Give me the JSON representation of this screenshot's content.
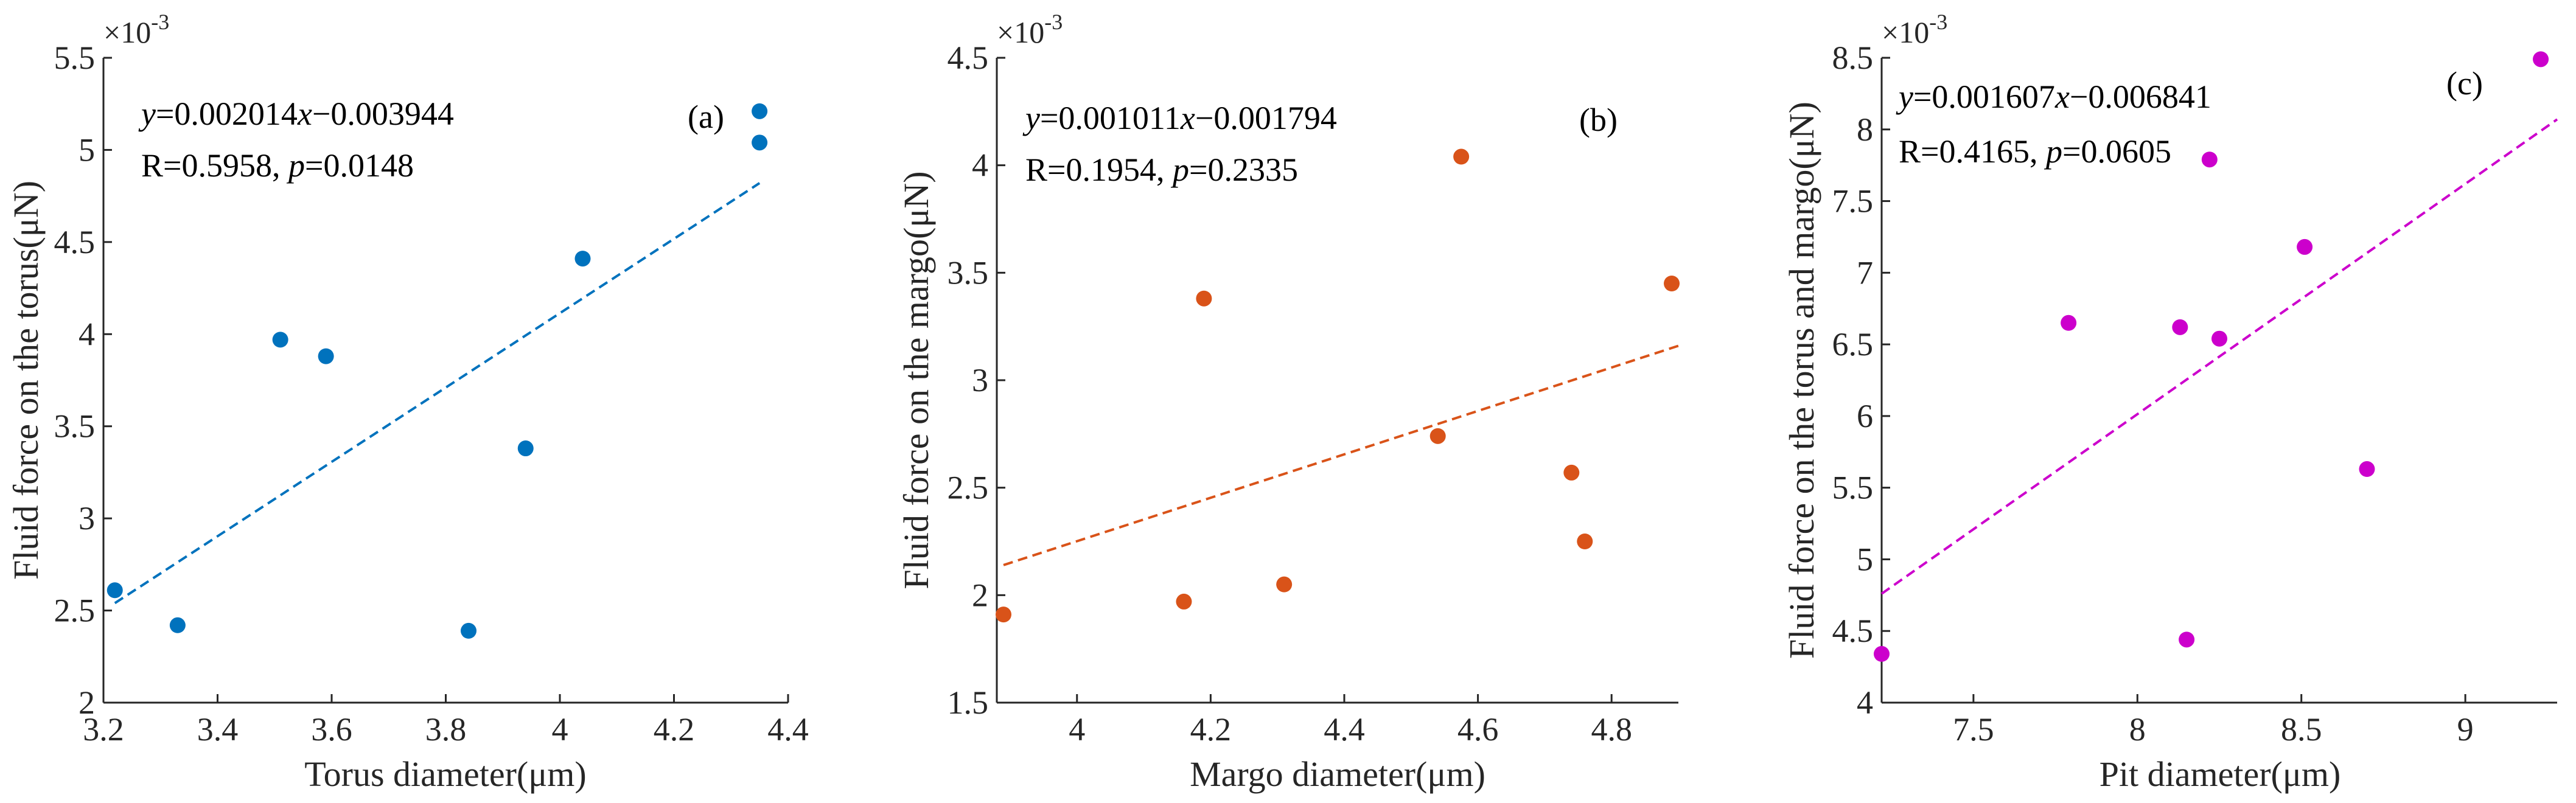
{
  "chart_data": [
    {
      "type": "scatter",
      "panel_label": "(a)",
      "xlabel": "Torus diameter(μm)",
      "ylabel": "Fluid force on the torus(μN)",
      "xlim": [
        3.2,
        4.4
      ],
      "ylim": [
        2.0,
        5.5
      ],
      "xticks": [
        3.2,
        3.4,
        3.6,
        3.8,
        4.0,
        4.2,
        4.4
      ],
      "xtick_labels": [
        "3.2",
        "3.4",
        "3.6",
        "3.8",
        "4",
        "4.2",
        "4.4"
      ],
      "yticks": [
        2.0,
        2.5,
        3.0,
        3.5,
        4.0,
        4.5,
        5.0,
        5.5
      ],
      "ytick_labels": [
        "2",
        "2.5",
        "3",
        "3.5",
        "4",
        "4.5",
        "5",
        "5.5"
      ],
      "y_multiplier": {
        "base": "×10",
        "exponent": "-3"
      },
      "color": "#0072BD",
      "x": [
        3.22,
        3.33,
        3.51,
        3.59,
        3.84,
        3.94,
        4.04,
        4.35,
        4.35
      ],
      "y": [
        2.61,
        2.42,
        3.97,
        3.88,
        2.39,
        3.38,
        4.41,
        5.21,
        5.04
      ],
      "fit": {
        "x": [
          3.22,
          4.35
        ],
        "y": [
          2.54,
          4.82
        ]
      },
      "annotation": {
        "eq_y": "y",
        "eq_rest": "=0.002014",
        "eq_x": "x",
        "eq_tail": "−0.003944",
        "r_text": "R=0.5958, ",
        "p_var": "p",
        "p_val": "=0.0148"
      }
    },
    {
      "type": "scatter",
      "panel_label": "(b)",
      "xlabel": "Margo diameter(μm)",
      "ylabel": "Fluid force on the margo(μN)",
      "xlim": [
        3.88,
        4.9
      ],
      "ylim": [
        1.5,
        4.5
      ],
      "xticks": [
        4.0,
        4.2,
        4.4,
        4.6,
        4.8
      ],
      "xtick_labels": [
        "4",
        "4.2",
        "4.4",
        "4.6",
        "4.8"
      ],
      "yticks": [
        1.5,
        2.0,
        2.5,
        3.0,
        3.5,
        4.0,
        4.5
      ],
      "ytick_labels": [
        "1.5",
        "2",
        "2.5",
        "3",
        "3.5",
        "4",
        "4.5"
      ],
      "y_multiplier": {
        "base": "×10",
        "exponent": "-3"
      },
      "color": "#D95319",
      "x": [
        3.89,
        4.16,
        4.19,
        4.31,
        4.54,
        4.575,
        4.74,
        4.76,
        4.89
      ],
      "y": [
        1.91,
        1.97,
        3.38,
        2.05,
        2.74,
        4.04,
        2.57,
        2.25,
        3.45
      ],
      "fit": {
        "x": [
          3.89,
          4.9
        ],
        "y": [
          2.14,
          3.16
        ]
      },
      "annotation": {
        "eq_y": "y",
        "eq_rest": "=0.001011",
        "eq_x": "x",
        "eq_tail": "−0.001794",
        "r_text": "R=0.1954, ",
        "p_var": "p",
        "p_val": "=0.2335"
      }
    },
    {
      "type": "scatter",
      "panel_label": "(c)",
      "xlabel": "Pit diameter(μm)",
      "ylabel": "Fluid force on the torus and margo(μN)",
      "xlim": [
        7.22,
        9.28
      ],
      "ylim": [
        4.0,
        8.5
      ],
      "xticks": [
        7.5,
        8.0,
        8.5,
        9.0
      ],
      "xtick_labels": [
        "7.5",
        "8",
        "8.5",
        "9"
      ],
      "yticks": [
        4.0,
        4.5,
        5.0,
        5.5,
        6.0,
        6.5,
        7.0,
        7.5,
        8.0,
        8.5
      ],
      "ytick_labels": [
        "4",
        "4.5",
        "5",
        "5.5",
        "6",
        "6.5",
        "7",
        "7.5",
        "8",
        "8.5"
      ],
      "y_multiplier": {
        "base": "×10",
        "exponent": "-3"
      },
      "color": "#CC00CC",
      "x": [
        7.22,
        7.79,
        8.13,
        8.15,
        8.22,
        8.25,
        8.51,
        8.7,
        9.23
      ],
      "y": [
        4.34,
        6.65,
        6.62,
        4.44,
        7.79,
        6.54,
        7.18,
        5.63,
        8.49
      ],
      "fit": {
        "x": [
          7.22,
          9.28
        ],
        "y": [
          4.76,
          8.07
        ]
      },
      "annotation": {
        "eq_y": "y",
        "eq_rest": "=0.001607",
        "eq_x": "x",
        "eq_tail": "−0.006841",
        "r_text": "R=0.4165, ",
        "p_var": "p",
        "p_val": "=0.0605"
      }
    }
  ]
}
